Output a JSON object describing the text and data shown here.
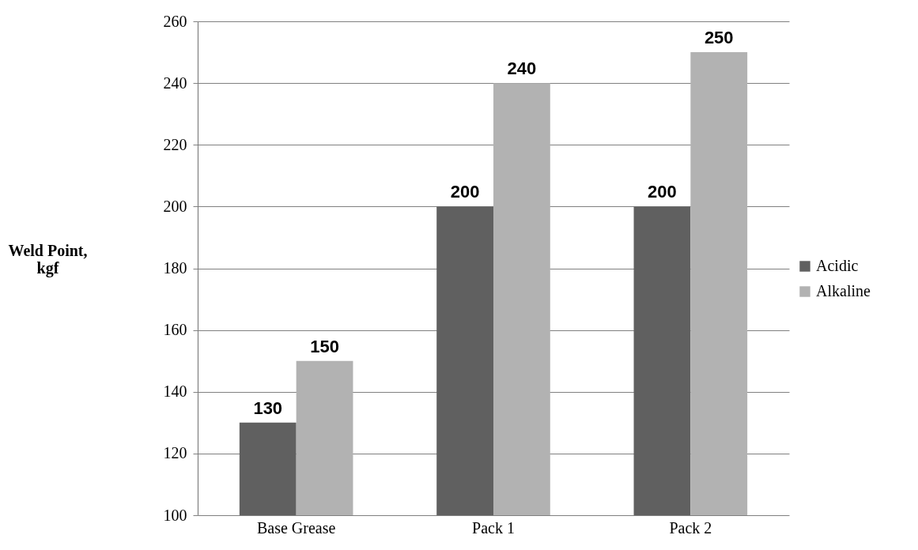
{
  "chart_data": {
    "type": "bar",
    "ylabel": "Weld Point, kgf",
    "categories": [
      "Base Grease",
      "Pack 1",
      "Pack 2"
    ],
    "series": [
      {
        "name": "Acidic",
        "color": "#606060",
        "values": [
          130,
          200,
          200
        ]
      },
      {
        "name": "Alkaline",
        "color": "#b2b2b2",
        "values": [
          150,
          240,
          250
        ]
      }
    ],
    "ylim": [
      100,
      260
    ],
    "yticks": [
      100,
      120,
      140,
      160,
      180,
      200,
      220,
      240,
      260
    ],
    "grid": "y",
    "legend": "right",
    "data_labels": true
  }
}
